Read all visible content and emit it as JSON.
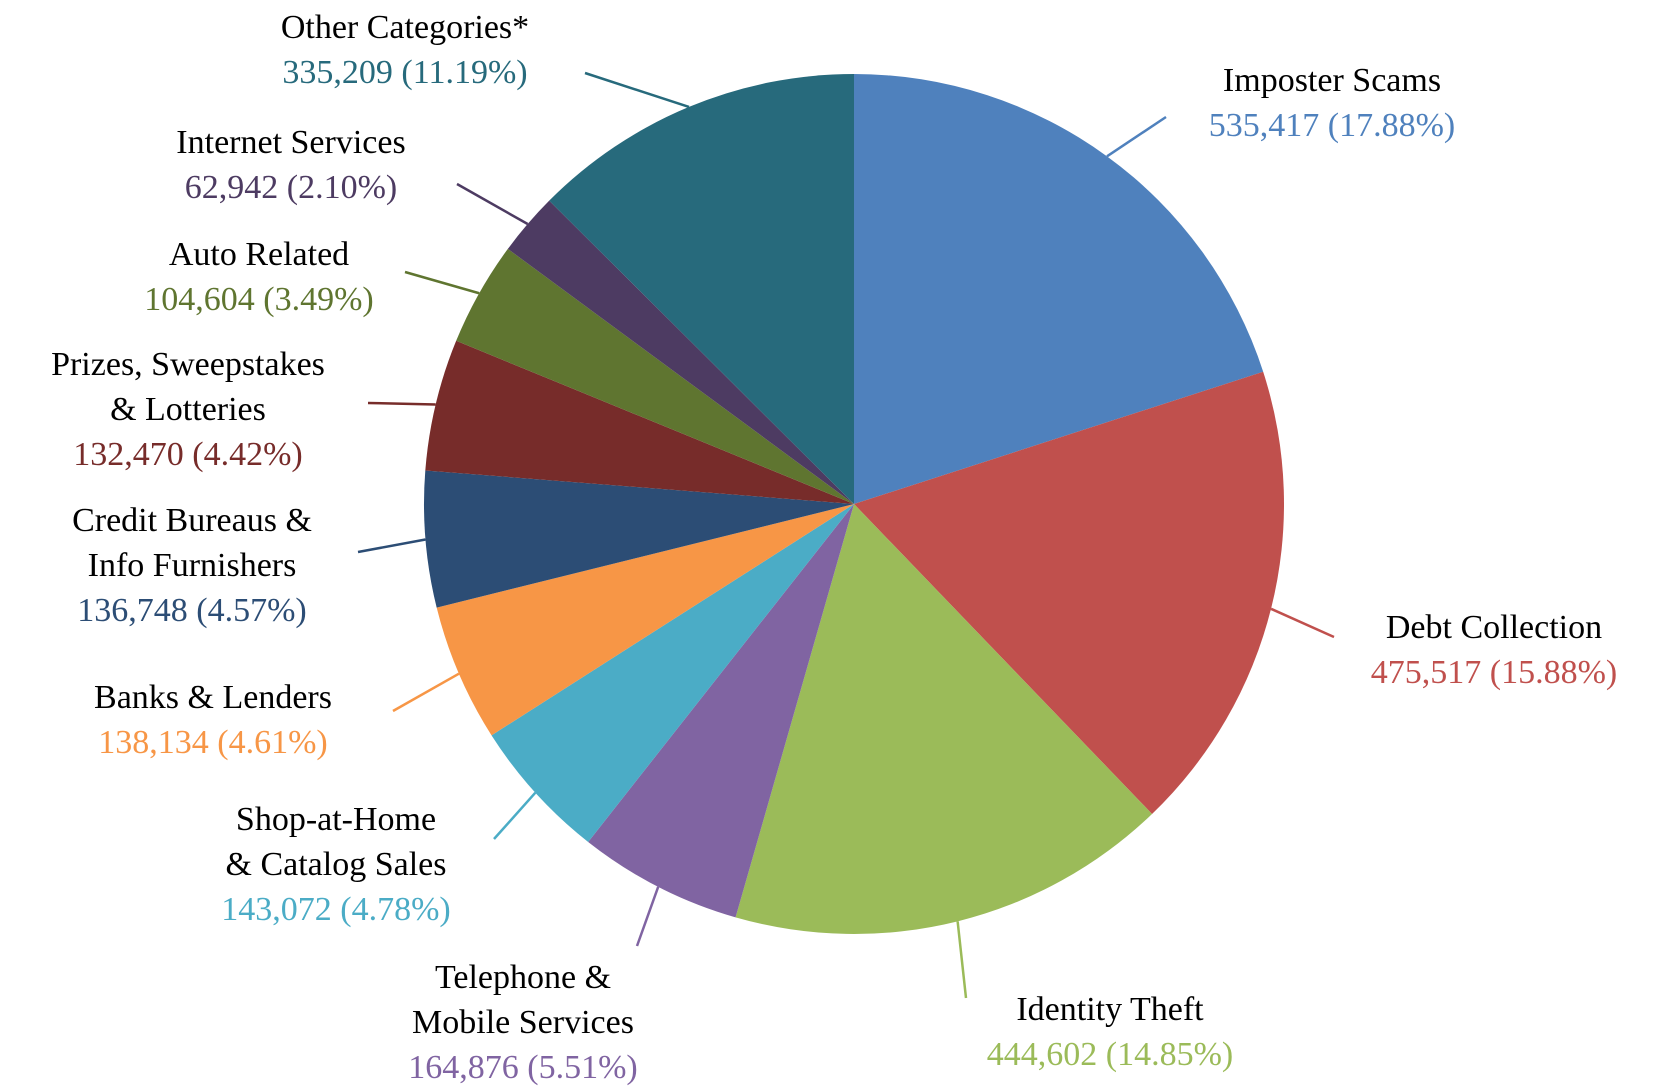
{
  "chart_data": {
    "type": "pie",
    "categories": [
      "Imposter Scams",
      "Debt Collection",
      "Identity Theft",
      "Telephone &\nMobile Services",
      "Shop-at-Home\n& Catalog Sales",
      "Banks & Lenders",
      "Credit Bureaus &\nInfo Furnishers",
      "Prizes, Sweepstakes\n& Lotteries",
      "Auto Related",
      "Internet Services",
      "Other Categories*"
    ],
    "values": [
      535417,
      475517,
      444602,
      164876,
      143072,
      138134,
      136748,
      132470,
      104604,
      62942,
      335209
    ],
    "value_labels": [
      "535,417 (17.88%)",
      "475,517 (15.88%)",
      "444,602 (14.85%)",
      "164,876 (5.51%)",
      "143,072 (4.78%)",
      "138,134 (4.61%)",
      "136,748 (4.57%)",
      "132,470 (4.42%)",
      "104,604 (3.49%)",
      "62,942 (2.10%)",
      "335,209 (11.19%)"
    ],
    "colors": [
      "#4f81bd",
      "#c0504d",
      "#9bbb59",
      "#8064a2",
      "#4bacc6",
      "#f79646",
      "#2c4d75",
      "#772c2a",
      "#5f7530",
      "#4d3b62",
      "#276a7c"
    ]
  }
}
